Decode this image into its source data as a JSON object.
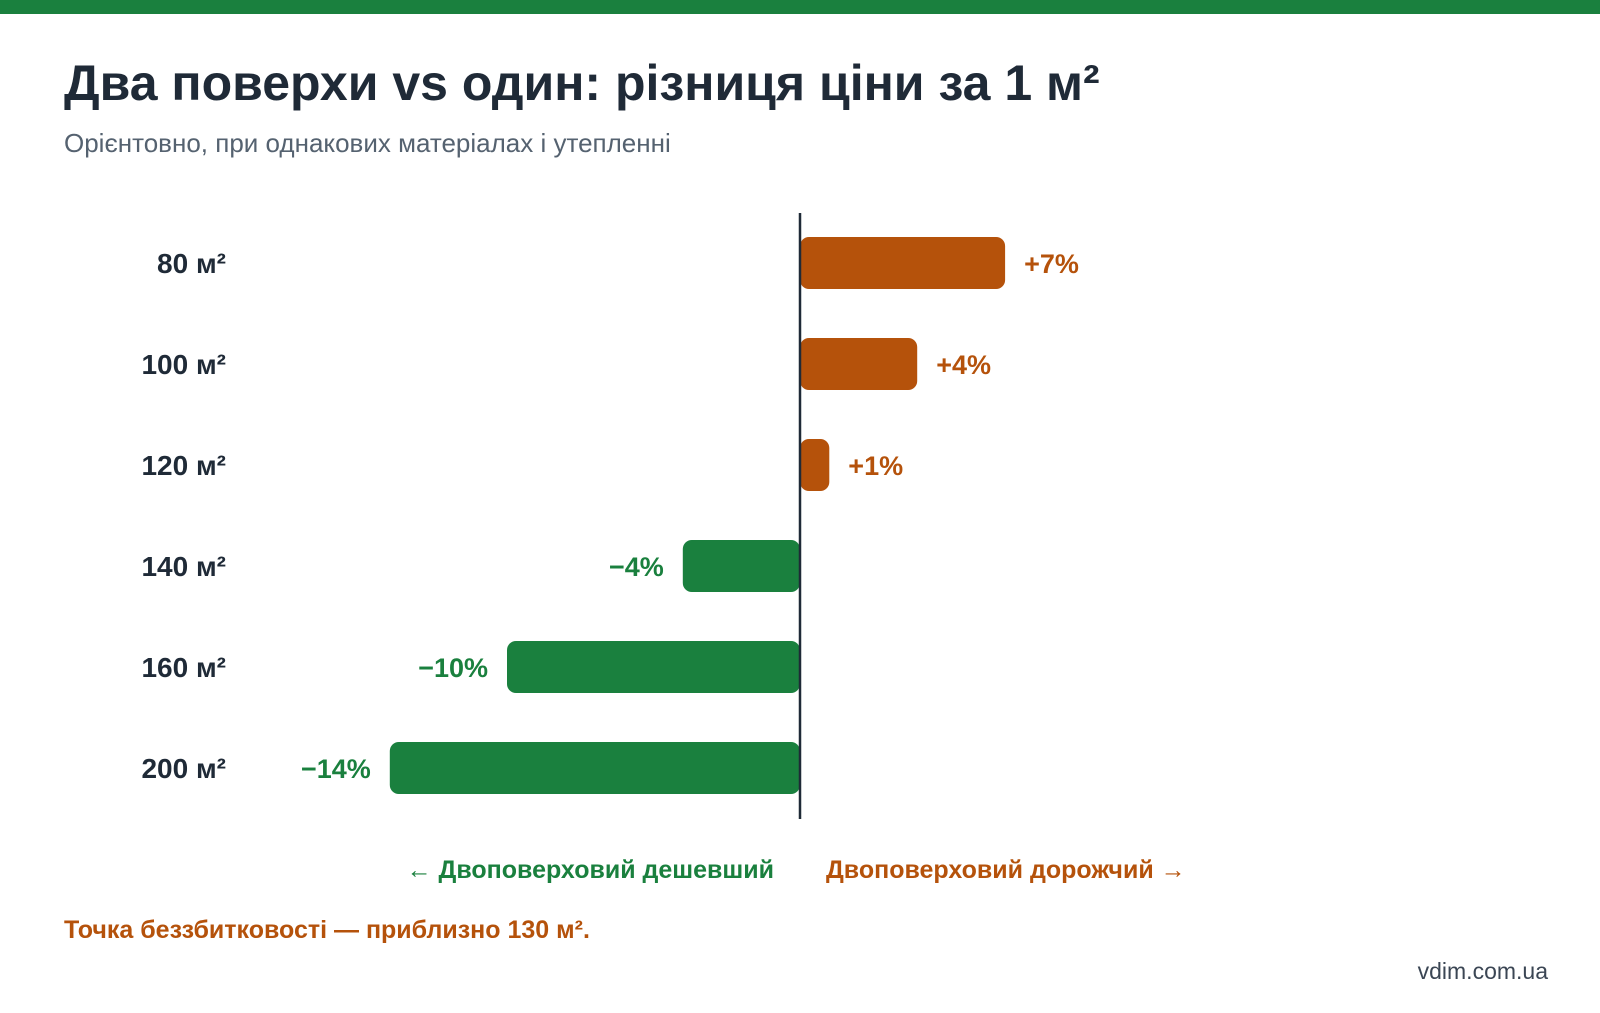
{
  "header": {
    "title": "Два поверхи vs один: різниця ціни за 1 м²",
    "subtitle": "Орієнтовно, при однакових матеріалах і утепленні"
  },
  "colors": {
    "accent_green": "#1a803e",
    "accent_orange": "#b5520b",
    "text_dark": "#1f2a37",
    "text_muted": "#556270"
  },
  "chart_data": {
    "type": "bar",
    "orientation": "horizontal",
    "title": "Два поверхи vs один: різниця ціни за 1 м²",
    "subtitle": "Орієнтовно, при однакових матеріалах і утепленні",
    "categories": [
      "80 м²",
      "100 м²",
      "120 м²",
      "140 м²",
      "160 м²",
      "200 м²"
    ],
    "values": [
      7,
      4,
      1,
      -4,
      -10,
      -14
    ],
    "value_labels": [
      "+7%",
      "+4%",
      "+1%",
      "−4%",
      "−10%",
      "−14%"
    ],
    "unit": "%",
    "xlim": [
      -14,
      14
    ],
    "grid": false,
    "legend": "none",
    "positive_color": "#b5520b",
    "negative_color": "#1a803e"
  },
  "directions": {
    "left": "← Двоповерховий дешевший",
    "right": "Двоповерховий дорожчий →"
  },
  "note": "Точка беззбитковості — приблизно 130 м².",
  "source": "vdim.com.ua"
}
